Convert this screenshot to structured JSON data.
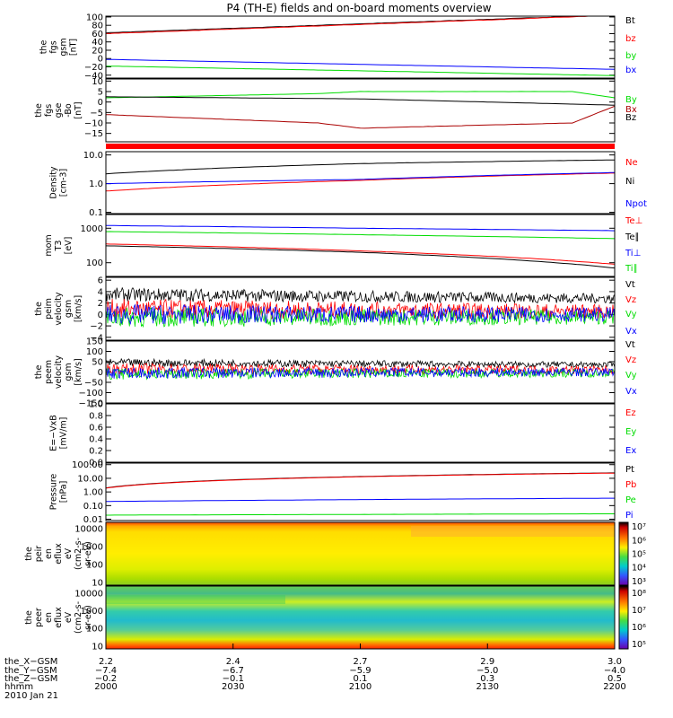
{
  "title": "P4 (TH-E) fields and on-board moments overview",
  "chart_data": [
    {
      "type": "line",
      "ylabel": [
        "the",
        "fgs",
        "gsm",
        "[nT]"
      ],
      "yticks": [
        "100",
        "80",
        "60",
        "40",
        "20",
        "0",
        "−20",
        "−40"
      ],
      "ylim": [
        -47,
        102
      ],
      "series": [
        {
          "name": "Bt",
          "color": "#000000",
          "values": [
            [
              2000,
              62
            ],
            [
              2200,
              105
            ]
          ]
        },
        {
          "name": "bz",
          "color": "#ff0000",
          "values": [
            [
              2000,
              60
            ],
            [
              2200,
              104
            ]
          ]
        },
        {
          "name": "by",
          "color": "#00dd00",
          "values": [
            [
              2000,
              -18
            ],
            [
              2200,
              -41
            ]
          ]
        },
        {
          "name": "bx",
          "color": "#0000ff",
          "values": [
            [
              2000,
              -2
            ],
            [
              2200,
              -26
            ]
          ]
        }
      ]
    },
    {
      "type": "line",
      "ylabel": [
        "the",
        "fgs",
        "gse",
        "-Bo",
        "[nT]"
      ],
      "yticks": [
        "10",
        "5",
        "0",
        "−5",
        "−10",
        "−15"
      ],
      "ylim": [
        -19,
        11
      ],
      "series": [
        {
          "name": "By",
          "color": "#00dd00",
          "values": [
            [
              2000,
              2
            ],
            [
              2050,
              4
            ],
            [
              2100,
              5
            ],
            [
              2150,
              5
            ],
            [
              2200,
              2
            ]
          ]
        },
        {
          "name": "Bz",
          "color": "#000000",
          "values": [
            [
              2000,
              2.5
            ],
            [
              2100,
              1.5
            ],
            [
              2170,
              -2
            ],
            [
              2200,
              -2
            ]
          ]
        },
        {
          "name": "Bx",
          "color": "#aa0000",
          "values": [
            [
              2000,
              -6
            ],
            [
              2050,
              -10
            ],
            [
              2100,
              -12.5
            ],
            [
              2150,
              -10
            ],
            [
              2200,
              -2
            ]
          ]
        }
      ]
    },
    {
      "type": "line",
      "ylabel": [
        "Density",
        "[cm-3]"
      ],
      "ylog": true,
      "yticks": [
        "10.0",
        "1.0",
        "0.1"
      ],
      "ylim": [
        0.09,
        13
      ],
      "series": [
        {
          "name": "Ne",
          "color": "#ff0000",
          "values": [
            [
              2000,
              0.55
            ],
            [
              2100,
              1.3
            ],
            [
              2170,
              2.5
            ],
            [
              2200,
              4.0
            ]
          ]
        },
        {
          "name": "Ni",
          "color": "#000000",
          "values": [
            [
              2000,
              2.2
            ],
            [
              2100,
              5.0
            ],
            [
              2170,
              7.0
            ],
            [
              2200,
              5.0
            ]
          ]
        },
        {
          "name": "Npot",
          "color": "#0000ff",
          "values": [
            [
              2000,
              1.0
            ],
            [
              2100,
              1.4
            ],
            [
              2170,
              2.6
            ],
            [
              2200,
              4.2
            ]
          ]
        }
      ]
    },
    {
      "type": "line",
      "ylabel": [
        "mom",
        "T3",
        "[eV]"
      ],
      "ylog": true,
      "yticks": [
        "1000",
        "100"
      ],
      "ylim": [
        40,
        2500
      ],
      "series": [
        {
          "name": "Te⊥",
          "color": "#ff0000",
          "values": [
            [
              2000,
              350
            ],
            [
              2100,
              220
            ],
            [
              2200,
              90
            ]
          ]
        },
        {
          "name": "Te∥",
          "color": "#000000",
          "values": [
            [
              2000,
              310
            ],
            [
              2100,
              200
            ],
            [
              2200,
              70
            ]
          ]
        },
        {
          "name": "Ti⊥",
          "color": "#0000ff",
          "values": [
            [
              2000,
              1200
            ],
            [
              2100,
              1000
            ],
            [
              2200,
              850
            ]
          ]
        },
        {
          "name": "Ti∥",
          "color": "#00dd00",
          "values": [
            [
              2000,
              800
            ],
            [
              2100,
              650
            ],
            [
              2200,
              500
            ]
          ]
        }
      ]
    },
    {
      "type": "line",
      "ylabel": [
        "the",
        "peim",
        "velocity",
        "gsm",
        "[km/s]"
      ],
      "yticks": [
        "6",
        "4",
        "2",
        "0",
        "−2",
        "−4"
      ],
      "ylim": [
        -4.5,
        6.5
      ],
      "series": [
        {
          "name": "Vt",
          "color": "#000000",
          "values": [
            [
              2000,
              3.5
            ],
            [
              2200,
              2.8
            ]
          ]
        },
        {
          "name": "Vz",
          "color": "#ff0000",
          "values": [
            [
              2000,
              1.0
            ],
            [
              2200,
              0.5
            ]
          ]
        },
        {
          "name": "Vy",
          "color": "#00dd00",
          "values": [
            [
              2000,
              -0.5
            ],
            [
              2200,
              -0.5
            ]
          ]
        },
        {
          "name": "Vx",
          "color": "#0000ff",
          "values": [
            [
              2000,
              0.0
            ],
            [
              2200,
              0.0
            ]
          ]
        }
      ]
    },
    {
      "type": "line",
      "ylabel": [
        "the",
        "peem",
        "velocity",
        "gsm",
        "[km/s]"
      ],
      "yticks": [
        "150",
        "100",
        "50",
        "0",
        "−50",
        "−100",
        "−150"
      ],
      "ylim": [
        -150,
        150
      ],
      "series": [
        {
          "name": "Vt",
          "color": "#000000",
          "values": [
            [
              2000,
              45
            ],
            [
              2200,
              35
            ]
          ]
        },
        {
          "name": "Vz",
          "color": "#ff0000",
          "values": [
            [
              2000,
              15
            ],
            [
              2200,
              10
            ]
          ]
        },
        {
          "name": "Vy",
          "color": "#00dd00",
          "values": [
            [
              2000,
              -10
            ],
            [
              2200,
              -5
            ]
          ]
        },
        {
          "name": "Vx",
          "color": "#0000ff",
          "values": [
            [
              2000,
              -5
            ],
            [
              2200,
              0
            ]
          ]
        }
      ]
    },
    {
      "type": "line",
      "ylabel": [
        "E=−VxB",
        "[mV/m]"
      ],
      "yticks": [
        "1.0",
        "0.8",
        "0.6",
        "0.4",
        "0.2",
        "0.0"
      ],
      "ylim": [
        0,
        1
      ],
      "series": [
        {
          "name": "Ez",
          "color": "#ff0000",
          "values": []
        },
        {
          "name": "Ey",
          "color": "#00dd00",
          "values": []
        },
        {
          "name": "Ex",
          "color": "#0000ff",
          "values": []
        }
      ]
    },
    {
      "type": "line",
      "ylabel": [
        "Pressure",
        "[nPa]"
      ],
      "ylog": true,
      "yticks": [
        "100.00",
        "10.00",
        "1.00",
        "0.10",
        "0.01"
      ],
      "ylim": [
        0.008,
        130
      ],
      "series": [
        {
          "name": "Pt",
          "color": "#000000",
          "values": [
            [
              2000,
              2.0
            ],
            [
              2200,
              25
            ]
          ]
        },
        {
          "name": "Pb",
          "color": "#ff0000",
          "values": [
            [
              2000,
              1.9
            ],
            [
              2200,
              24
            ]
          ]
        },
        {
          "name": "Pe",
          "color": "#00dd00",
          "values": [
            [
              2000,
              0.02
            ],
            [
              2200,
              0.025
            ]
          ]
        },
        {
          "name": "Pi",
          "color": "#0000ff",
          "values": [
            [
              2000,
              0.2
            ],
            [
              2200,
              0.35
            ]
          ]
        }
      ]
    },
    {
      "type": "heatmap",
      "ylabel": [
        "the",
        "peir",
        "en",
        "eflux",
        "eV",
        "(cm2-s-",
        "sr-eV)"
      ],
      "ylog": true,
      "yticks": [
        "10000",
        "1000",
        "100",
        "10"
      ],
      "ylim": [
        7,
        22000
      ],
      "colorbar_ticks": [
        "10⁷",
        "10⁶",
        "10⁵",
        "10⁴",
        "10³"
      ],
      "colorbar_range": [
        2.7,
        7.3
      ]
    },
    {
      "type": "heatmap",
      "ylabel": [
        "the",
        "peer",
        "en",
        "eflux",
        "eV",
        "(cm2-s-",
        "sr-eV)"
      ],
      "ylog": true,
      "yticks": [
        "10000",
        "1000",
        "100",
        "10"
      ],
      "ylim": [
        7,
        25000
      ],
      "colorbar_ticks": [
        "10⁸",
        "10⁷",
        "10⁶",
        "10⁵"
      ],
      "colorbar_range": [
        4.7,
        8.4
      ]
    }
  ],
  "x_axis": {
    "range": [
      2000,
      2200
    ],
    "rows": [
      {
        "label": "the_X−GSM",
        "values": [
          "2.2",
          "2.4",
          "2.7",
          "2.9",
          "3.0"
        ]
      },
      {
        "label": "the_Y−GSM",
        "values": [
          "−7.4",
          "−6.7",
          "−5.9",
          "−5.0",
          "−4.0"
        ]
      },
      {
        "label": "the_Z−GSM",
        "values": [
          "−0.2",
          "−0.1",
          "0.1",
          "0.3",
          "0.5"
        ]
      },
      {
        "label": "hhmm",
        "values": [
          "2000",
          "2030",
          "2100",
          "2130",
          "2200"
        ]
      }
    ],
    "date": "2010 Jan 21"
  }
}
